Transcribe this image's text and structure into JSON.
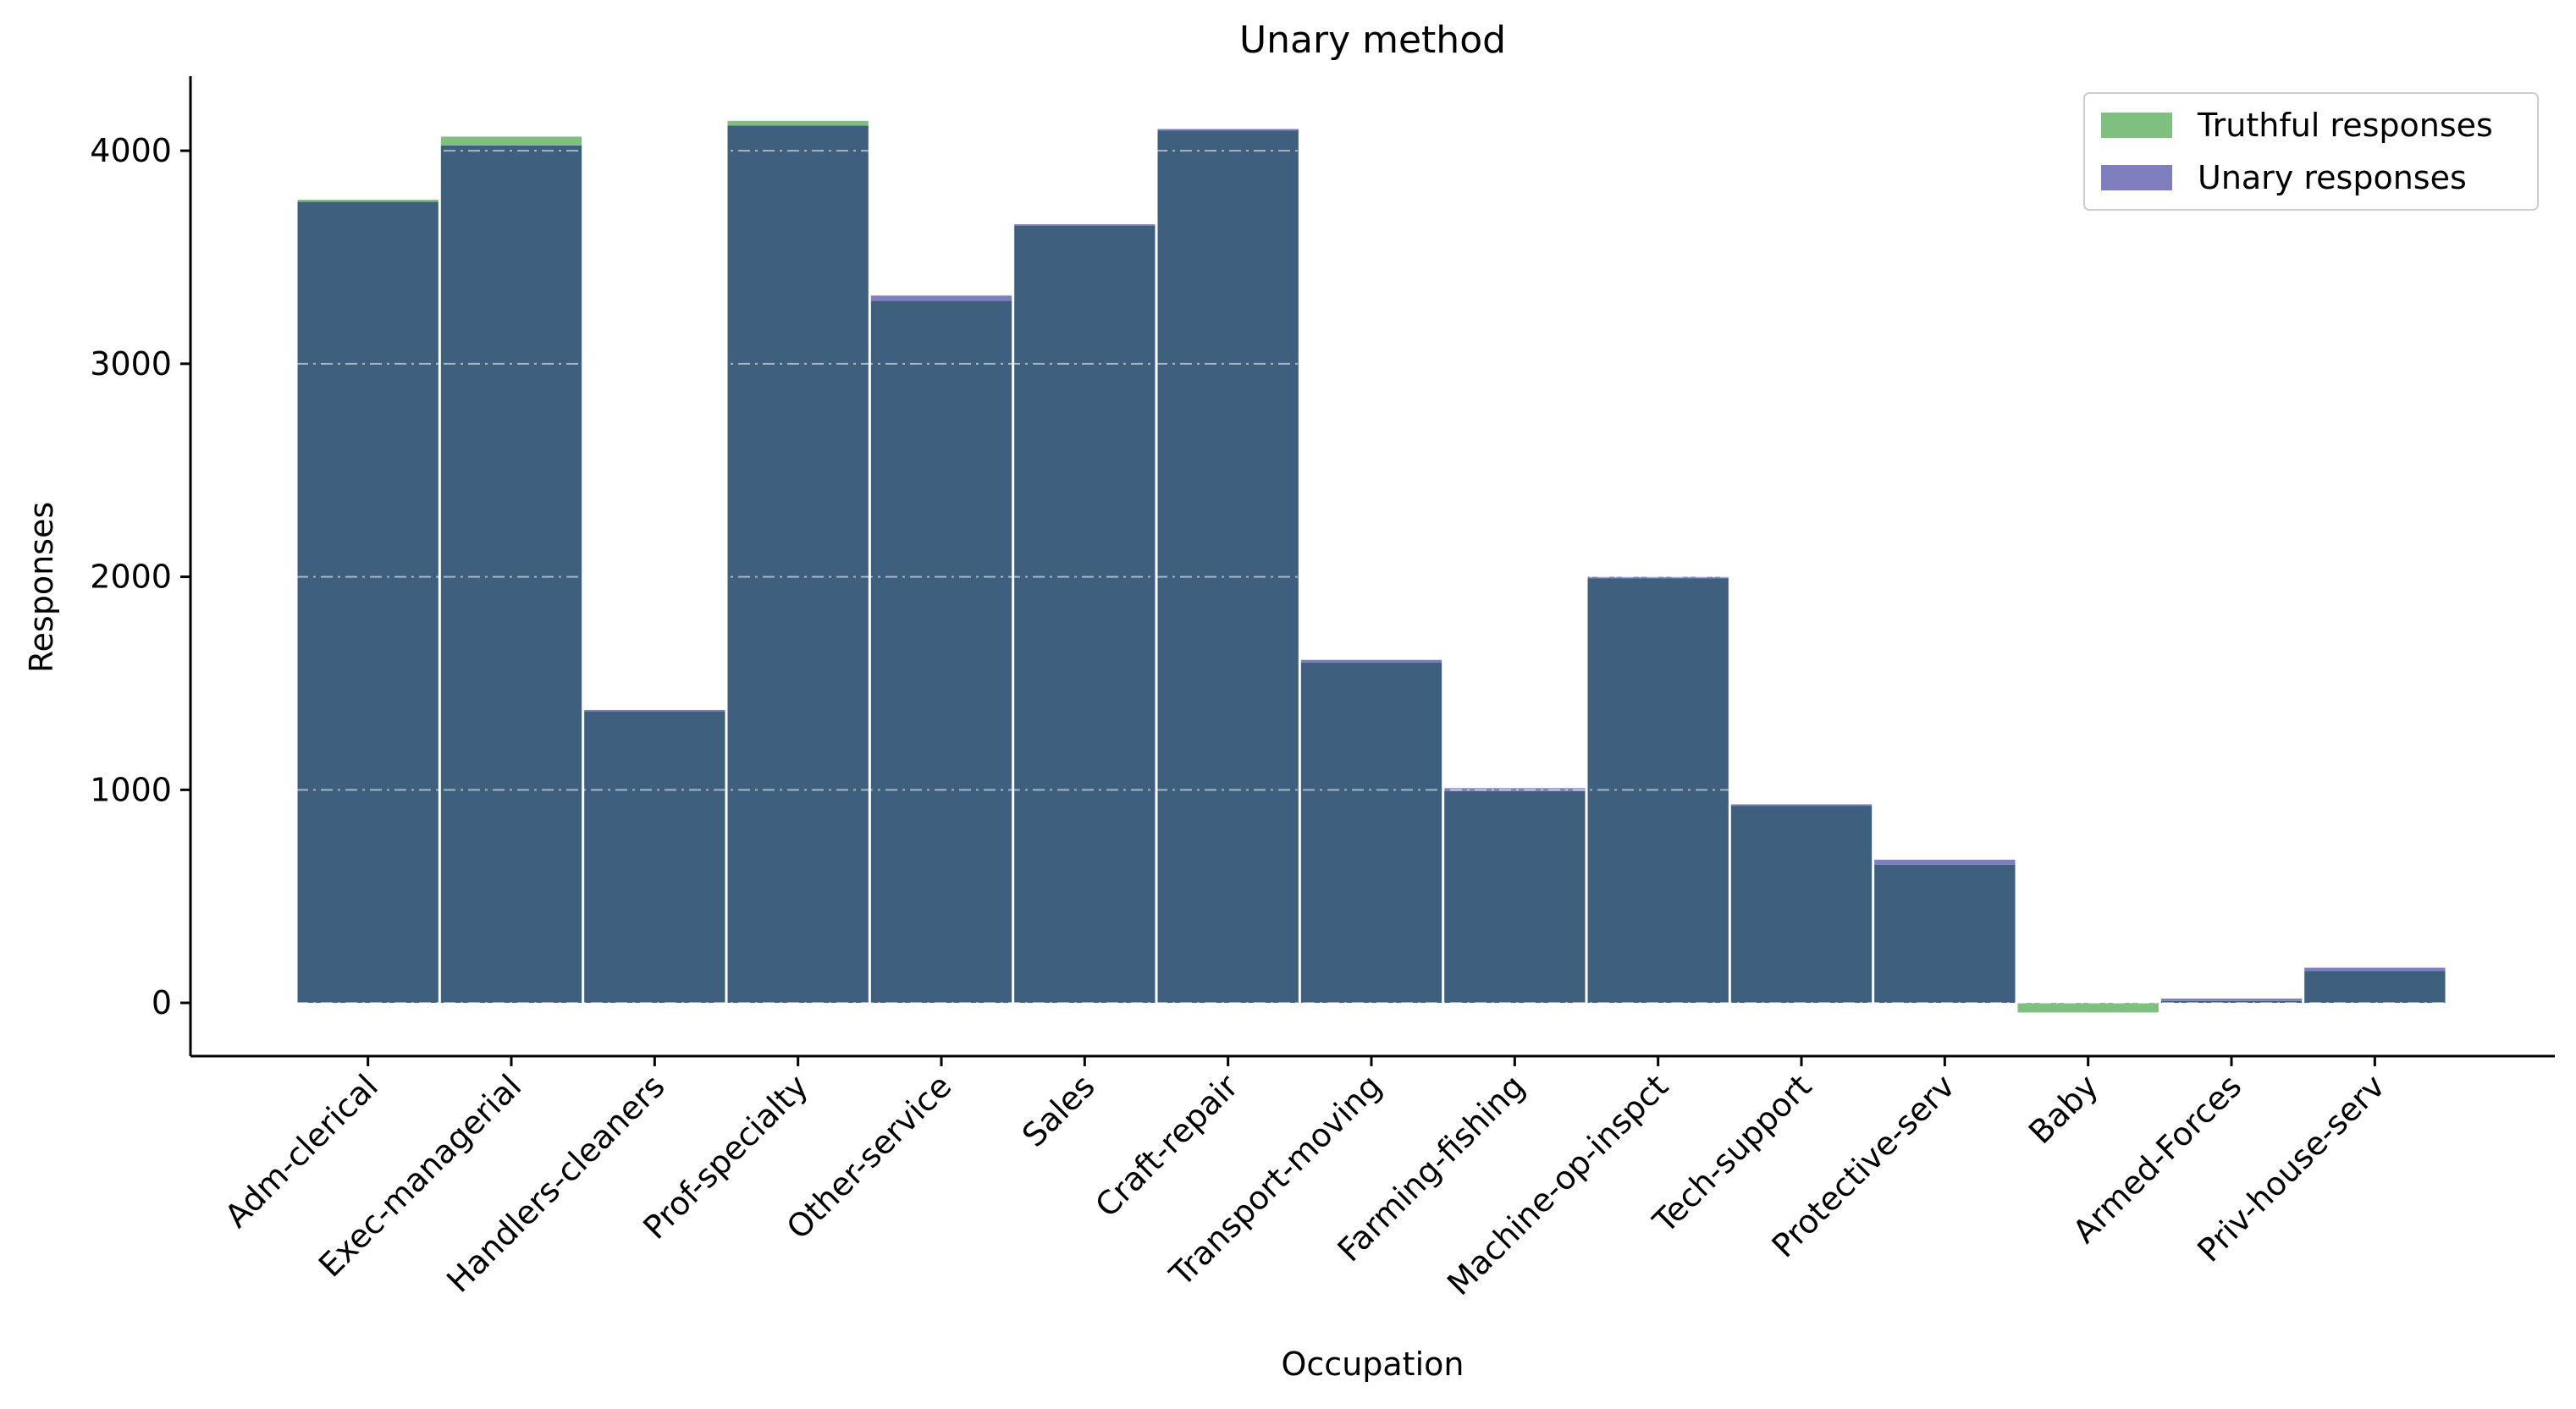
{
  "chart_data": {
    "type": "bar",
    "title": "Unary method",
    "xlabel": "Occupation",
    "ylabel": "Responses",
    "ylim": [
      -250,
      4350
    ],
    "yticks": [
      0,
      1000,
      2000,
      3000,
      4000
    ],
    "grid": "horizontal dash-dot",
    "legend_position": "top-right",
    "categories": [
      "Adm-clerical",
      "Exec-managerial",
      "Handlers-cleaners",
      "Prof-specialty",
      "Other-service",
      "Sales",
      "Craft-repair",
      "Transport-moving",
      "Farming-fishing",
      "Machine-op-inspct",
      "Tech-support",
      "Protective-serv",
      "Baby",
      "Armed-Forces",
      "Priv-house-serv"
    ],
    "series": [
      {
        "name": "Truthful responses",
        "color": "#7fbf7f",
        "values": [
          3770,
          4066,
          1370,
          4140,
          3295,
          3650,
          4099,
          1597,
          994,
          1994,
          928,
          649,
          0,
          9,
          149
        ]
      },
      {
        "name": "Unary responses",
        "color": "#7f7fbf",
        "values": [
          3760,
          4025,
          1375,
          4118,
          3320,
          3655,
          4102,
          1610,
          1008,
          2000,
          932,
          672,
          -45,
          20,
          165
        ]
      }
    ],
    "overlap_color": "#3f5f7f"
  }
}
